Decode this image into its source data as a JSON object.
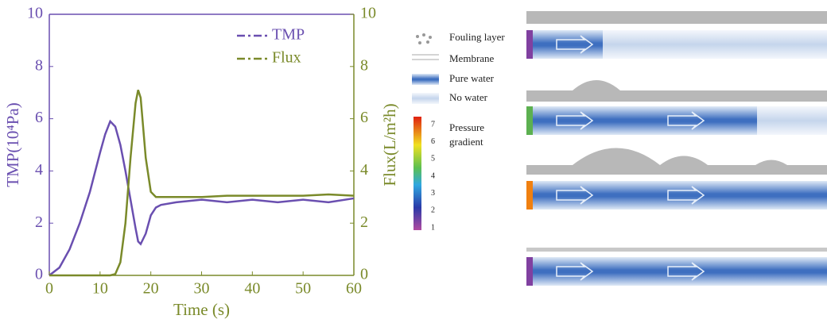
{
  "chart_data": {
    "type": "line",
    "x_label": "Time (s)",
    "y_label": "TMP(10⁴Pa)",
    "y2_label": "Flux(L/m²h)",
    "x": [
      0,
      2,
      4,
      6,
      8,
      10,
      11,
      12,
      13,
      14,
      15,
      16,
      17,
      17.5,
      18,
      19,
      20,
      21,
      22,
      25,
      30,
      35,
      40,
      45,
      50,
      55,
      60
    ],
    "series": [
      {
        "name": "TMP",
        "color": "#6a4fb0",
        "values": [
          0,
          0.3,
          1.0,
          2.0,
          3.2,
          4.7,
          5.4,
          5.9,
          5.7,
          5.0,
          4.0,
          2.9,
          1.8,
          1.3,
          1.2,
          1.6,
          2.3,
          2.6,
          2.7,
          2.8,
          2.9,
          2.8,
          2.9,
          2.8,
          2.9,
          2.8,
          2.95
        ]
      },
      {
        "name": "Flux",
        "color": "#7a8a2a",
        "axis": "y2",
        "values": [
          0,
          0,
          0,
          0,
          0,
          0,
          0,
          0,
          0.05,
          0.5,
          2.0,
          4.5,
          6.6,
          7.1,
          6.8,
          4.5,
          3.2,
          3.0,
          3.0,
          3.0,
          3.0,
          3.05,
          3.05,
          3.05,
          3.05,
          3.1,
          3.05
        ]
      }
    ],
    "xlim": [
      0,
      60
    ],
    "xticks": [
      0,
      10,
      20,
      30,
      40,
      50,
      60
    ],
    "ylim": [
      0,
      10
    ],
    "yticks": [
      0,
      2,
      4,
      6,
      8,
      10
    ],
    "y2lim": [
      0,
      10
    ],
    "y2ticks": [
      0,
      2,
      4,
      6,
      8,
      10
    ],
    "legend": "upper right"
  },
  "diagram": {
    "legend": [
      "Fouling layer",
      "Membrane",
      "Pure water",
      "No water"
    ],
    "colorbar": {
      "label": [
        "Pressure",
        "gradient"
      ],
      "ticks": [
        1,
        2,
        3,
        4,
        5,
        6,
        7
      ]
    }
  }
}
